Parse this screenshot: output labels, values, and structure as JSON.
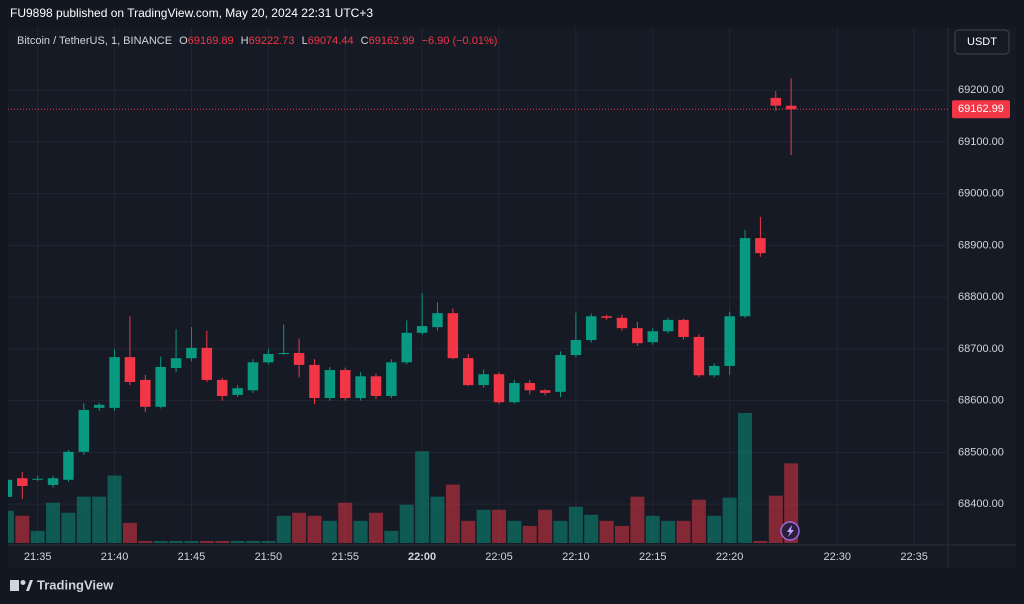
{
  "header": "FU9898 published on TradingView.com, May 20, 2024 22:31 UTC+3",
  "currency": "USDT",
  "footer": "TradingView",
  "chart_data": {
    "type": "candlestick",
    "legend": {
      "symbol": "Bitcoin / TetherUS, 1, BINANCE",
      "labels": [
        "O",
        "H",
        "L",
        "C"
      ],
      "change": "−6.90 (−0.01%)"
    },
    "open": [
      68414,
      68450,
      68447,
      68437,
      68447,
      68501,
      68586,
      68586,
      68684,
      68640,
      68588,
      68663,
      68682,
      68702,
      68640,
      68611,
      68620,
      68674,
      68690,
      68692,
      68669,
      68605,
      68659,
      68605,
      68647,
      68609,
      68674,
      68731,
      68742,
      68769,
      68682,
      68630,
      68651,
      68597,
      68634,
      68620,
      68617,
      68688,
      68717,
      68763,
      68760,
      68740,
      68713,
      68734,
      68756,
      68723,
      68649,
      68667,
      68763,
      68914,
      69185,
      69169.89
    ],
    "high": [
      68455,
      68462,
      68455,
      68455,
      68505,
      68595,
      68596,
      68700,
      68763,
      68650,
      68685,
      68738,
      68742,
      68735,
      68644,
      68630,
      68680,
      68700,
      68747,
      68720,
      68680,
      68665,
      68664,
      68655,
      68652,
      68680,
      68755,
      68808,
      68790,
      68778,
      68690,
      68660,
      68655,
      68640,
      68640,
      68622,
      68695,
      68770,
      68768,
      68766,
      68766,
      68752,
      68740,
      68760,
      68758,
      68728,
      68672,
      68772,
      68930,
      68955,
      69198,
      69222.73
    ],
    "low": [
      68405,
      68410,
      68445,
      68432,
      68443,
      68495,
      68580,
      68580,
      68630,
      68578,
      68585,
      68655,
      68676,
      68636,
      68600,
      68607,
      68615,
      68670,
      68688,
      68645,
      68593,
      68600,
      68600,
      68600,
      68603,
      68605,
      68670,
      68727,
      68735,
      68680,
      68628,
      68625,
      68593,
      68594,
      68612,
      68610,
      68607,
      68684,
      68712,
      68756,
      68735,
      68706,
      68708,
      68730,
      68718,
      68645,
      68645,
      68650,
      68760,
      68878,
      69160,
      69074.44
    ],
    "close": [
      68447,
      68435,
      68449,
      68450,
      68501,
      68582,
      68592,
      68684,
      68636,
      68588,
      68665,
      68682,
      68702,
      68640,
      68609,
      68624,
      68674,
      68690,
      68692,
      68669,
      68605,
      68659,
      68605,
      68647,
      68609,
      68674,
      68731,
      68744,
      68769,
      68682,
      68630,
      68651,
      68597,
      68634,
      68620,
      68615,
      68688,
      68717,
      68763,
      68760,
      68740,
      68711,
      68734,
      68756,
      68723,
      68649,
      68667,
      68763,
      68914,
      68885,
      69170,
      69162.99
    ],
    "volume": [
      32,
      27,
      12,
      40,
      30,
      46,
      46,
      67,
      20,
      2,
      2,
      2,
      2,
      2,
      2,
      2,
      2,
      2,
      27,
      30,
      27,
      22,
      40,
      22,
      30,
      12,
      38,
      91,
      46,
      58,
      22,
      33,
      33,
      22,
      17,
      33,
      22,
      36,
      28,
      22,
      17,
      46,
      27,
      22,
      22,
      43,
      27,
      45,
      129,
      2,
      47,
      79
    ],
    "colors": {
      "up": "#089981",
      "down": "#f23645"
    },
    "xlim": [
      0.07,
      61.2
    ],
    "xticks": [
      {
        "value": 2,
        "label": "21:35"
      },
      {
        "value": 7,
        "label": "21:40"
      },
      {
        "value": 12,
        "label": "21:45"
      },
      {
        "value": 17,
        "label": "21:50"
      },
      {
        "value": 22,
        "label": "21:55"
      },
      {
        "value": 27,
        "label": "22:00"
      },
      {
        "value": 32,
        "label": "22:05"
      },
      {
        "value": 37,
        "label": "22:10"
      },
      {
        "value": 42,
        "label": "22:15"
      },
      {
        "value": 47,
        "label": "22:20"
      },
      {
        "value": 54,
        "label": "22:30"
      },
      {
        "value": 59,
        "label": "22:35"
      }
    ],
    "ylim": [
      68321,
      69320
    ],
    "yticks": [
      {
        "value": 68400,
        "label": "68400.00"
      },
      {
        "value": 68500,
        "label": "68500.00"
      },
      {
        "value": 68600,
        "label": "68600.00"
      },
      {
        "value": 68700,
        "label": "68700.00"
      },
      {
        "value": 68800,
        "label": "68800.00"
      },
      {
        "value": 68900,
        "label": "68900.00"
      },
      {
        "value": 69000,
        "label": "69000.00"
      },
      {
        "value": 69100,
        "label": "69100.00"
      },
      {
        "value": 69200,
        "label": "69200.00"
      }
    ],
    "grid": true
  }
}
